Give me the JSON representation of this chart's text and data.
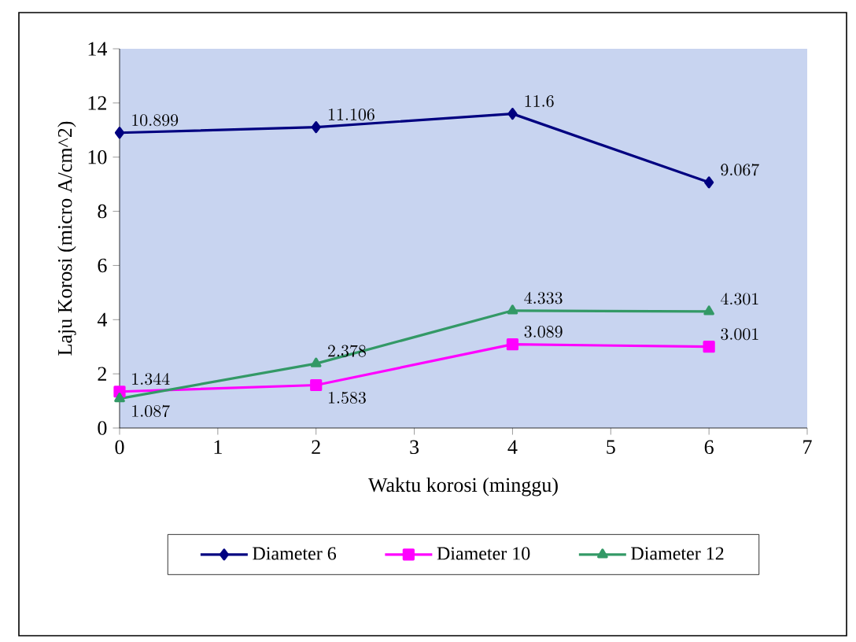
{
  "chart_data": {
    "type": "line",
    "xlabel": "Waktu korosi (minggu)",
    "ylabel": "Laju Korosi (micro A/cm^2)",
    "x": [
      0,
      2,
      4,
      6
    ],
    "series": [
      {
        "name": "Diameter 6",
        "color": "#000080",
        "marker": "diamond",
        "values": [
          10.899,
          11.106,
          11.6,
          9.067
        ]
      },
      {
        "name": "Diameter 10",
        "color": "#ff00ff",
        "marker": "square",
        "values": [
          1.344,
          1.583,
          3.089,
          3.001
        ]
      },
      {
        "name": "Diameter 12",
        "color": "#339966",
        "marker": "triangle",
        "values": [
          1.087,
          2.378,
          4.333,
          4.301
        ]
      }
    ],
    "xlim": [
      0,
      7
    ],
    "xticks": [
      0,
      1,
      2,
      3,
      4,
      5,
      6,
      7
    ],
    "ylim": [
      0,
      14
    ],
    "yticks": [
      0,
      2,
      4,
      6,
      8,
      10,
      12,
      14
    ],
    "data_labels": true,
    "legend": "bottom",
    "grid": false
  }
}
